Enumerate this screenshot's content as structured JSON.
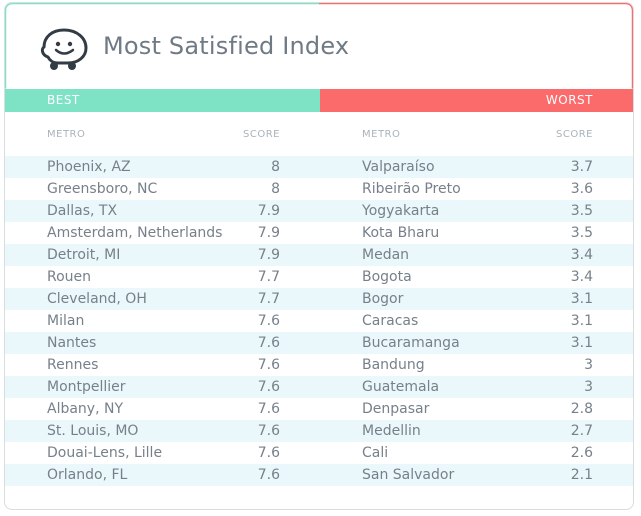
{
  "title": "Most Satisfied Index",
  "logo_icon": "waze-logo-icon",
  "colors": {
    "best": "#7de3c4",
    "worst": "#fb6b6b",
    "row_stripe": "#eaf8fb"
  },
  "best": {
    "label": "BEST",
    "metro_header": "METRO",
    "score_header": "SCORE",
    "rows": [
      {
        "metro": "Phoenix, AZ",
        "score": "8"
      },
      {
        "metro": "Greensboro, NC",
        "score": "8"
      },
      {
        "metro": "Dallas, TX",
        "score": "7.9"
      },
      {
        "metro": "Amsterdam, Netherlands",
        "score": "7.9"
      },
      {
        "metro": "Detroit, MI",
        "score": "7.9"
      },
      {
        "metro": "Rouen",
        "score": "7.7"
      },
      {
        "metro": "Cleveland, OH",
        "score": "7.7"
      },
      {
        "metro": "Milan",
        "score": "7.6"
      },
      {
        "metro": "Nantes",
        "score": "7.6"
      },
      {
        "metro": "Rennes",
        "score": "7.6"
      },
      {
        "metro": "Montpellier",
        "score": "7.6"
      },
      {
        "metro": "Albany, NY",
        "score": "7.6"
      },
      {
        "metro": "St. Louis, MO",
        "score": "7.6"
      },
      {
        "metro": "Douai-Lens, Lille",
        "score": "7.6"
      },
      {
        "metro": "Orlando, FL",
        "score": "7.6"
      }
    ]
  },
  "worst": {
    "label": "WORST",
    "metro_header": "METRO",
    "score_header": "SCORE",
    "rows": [
      {
        "metro": "Valparaíso",
        "score": "3.7"
      },
      {
        "metro": "Ribeirão Preto",
        "score": "3.6"
      },
      {
        "metro": "Yogyakarta",
        "score": "3.5"
      },
      {
        "metro": "Kota Bharu",
        "score": "3.5"
      },
      {
        "metro": "Medan",
        "score": "3.4"
      },
      {
        "metro": "Bogota",
        "score": "3.4"
      },
      {
        "metro": "Bogor",
        "score": "3.1"
      },
      {
        "metro": "Caracas",
        "score": "3.1"
      },
      {
        "metro": "Bucaramanga",
        "score": "3.1"
      },
      {
        "metro": "Bandung",
        "score": "3"
      },
      {
        "metro": "Guatemala",
        "score": "3"
      },
      {
        "metro": "Denpasar",
        "score": "2.8"
      },
      {
        "metro": "Medellin",
        "score": "2.7"
      },
      {
        "metro": "Cali",
        "score": "2.6"
      },
      {
        "metro": "San Salvador",
        "score": "2.1"
      }
    ]
  }
}
